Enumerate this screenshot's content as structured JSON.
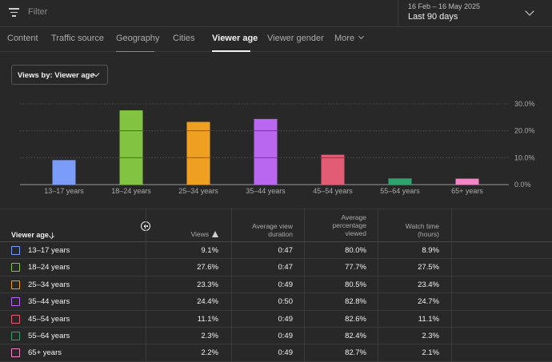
{
  "filter": {
    "placeholder": "Filter"
  },
  "date": {
    "range": "16 Feb – 16 May 2025",
    "label": "Last 90 days"
  },
  "tabs": [
    {
      "label": "Content"
    },
    {
      "label": "Traffic source"
    },
    {
      "label": "Geography"
    },
    {
      "label": "Cities"
    },
    {
      "label": "Viewer age"
    },
    {
      "label": "Viewer gender"
    },
    {
      "label": "More"
    }
  ],
  "active_tab": "Viewer age",
  "viewby": {
    "label": "Views by: Viewer age"
  },
  "chart_data": {
    "type": "bar",
    "categories": [
      "13–17 years",
      "18–24 years",
      "25–34 years",
      "35–44 years",
      "45–54 years",
      "55–64 years",
      "65+ years"
    ],
    "values": [
      9.1,
      27.6,
      23.3,
      24.4,
      11.1,
      2.3,
      2.2
    ],
    "colors": [
      "#7b9cf8",
      "#82c341",
      "#f0a020",
      "#b967f0",
      "#e25c74",
      "#2ea36e",
      "#f285c6"
    ],
    "yticks": [
      "30.0%",
      "20.0%",
      "10.0%",
      "0.0%"
    ],
    "ylim": [
      0,
      30
    ],
    "grid": true
  },
  "table": {
    "headers": {
      "first": "Viewer age",
      "views": "Views",
      "avg_duration_1": "Average view",
      "avg_duration_2": "duration",
      "avg_pct_1": "Average",
      "avg_pct_2": "percentage",
      "avg_pct_3": "viewed",
      "watch_1": "Watch time",
      "watch_2": "(hours)"
    },
    "rows": [
      {
        "label": "13–17 years",
        "views": "9.1%",
        "duration": "0:47",
        "pct": "80.0%",
        "watch": "8.9%"
      },
      {
        "label": "18–24 years",
        "views": "27.6%",
        "duration": "0:47",
        "pct": "77.7%",
        "watch": "27.5%"
      },
      {
        "label": "25–34 years",
        "views": "23.3%",
        "duration": "0:49",
        "pct": "80.5%",
        "watch": "23.4%"
      },
      {
        "label": "35–44 years",
        "views": "24.4%",
        "duration": "0:50",
        "pct": "82.8%",
        "watch": "24.7%"
      },
      {
        "label": "45–54 years",
        "views": "11.1%",
        "duration": "0:49",
        "pct": "82.6%",
        "watch": "11.1%"
      },
      {
        "label": "55–64 years",
        "views": "2.3%",
        "duration": "0:49",
        "pct": "82.4%",
        "watch": "2.3%"
      },
      {
        "label": "65+ years",
        "views": "2.2%",
        "duration": "0:49",
        "pct": "82.7%",
        "watch": "2.1%"
      }
    ]
  }
}
